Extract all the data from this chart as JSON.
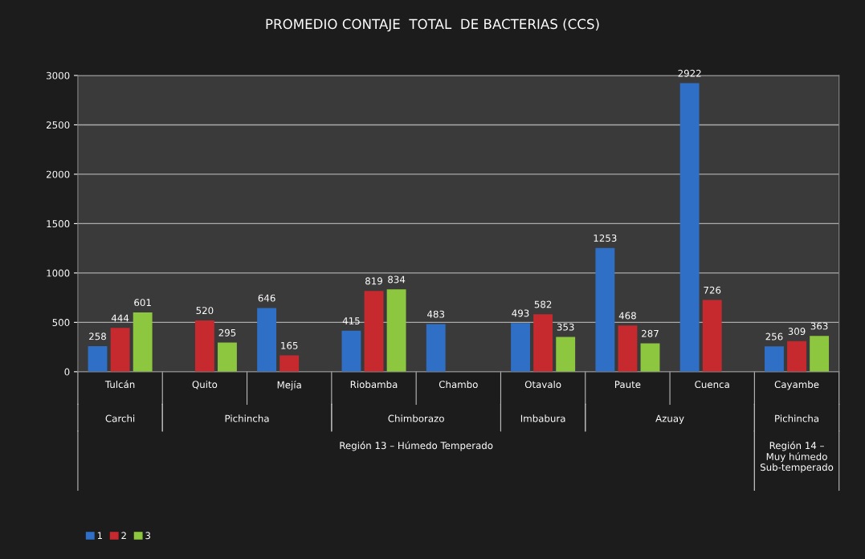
{
  "chart_data": {
    "type": "bar",
    "title": "PROMEDIO CONTAJE  TOTAL  DE BACTERIAS (CCS)",
    "categories": [
      "Tulcán",
      "Quito",
      "Mejía",
      "Riobamba",
      "Chambo",
      "Otavalo",
      "Paute",
      "Cuenca",
      "Cayambe"
    ],
    "series": [
      {
        "name": "1",
        "color": "#2f6fc6",
        "values": [
          258,
          null,
          646,
          415,
          483,
          493,
          1253,
          2922,
          256
        ]
      },
      {
        "name": "2",
        "color": "#c62a2f",
        "values": [
          444,
          520,
          165,
          819,
          null,
          582,
          468,
          726,
          309
        ]
      },
      {
        "name": "3",
        "color": "#8dc63f",
        "values": [
          601,
          295,
          null,
          834,
          null,
          353,
          287,
          null,
          363
        ]
      }
    ],
    "ylim": [
      0,
      3000
    ],
    "yticks": [
      0,
      500,
      1000,
      1500,
      2000,
      2500,
      3000
    ],
    "grid": "y",
    "legend": "bottom left",
    "data_labels": true,
    "annotations": [
      "Carchi",
      "Pichincha",
      "Chimborazo",
      "Imbabura",
      "Azuay",
      "Pichincha",
      "Región 13 – Húmedo Temperado",
      "Región 14 – Muy húmedo Sub-temperado"
    ]
  }
}
